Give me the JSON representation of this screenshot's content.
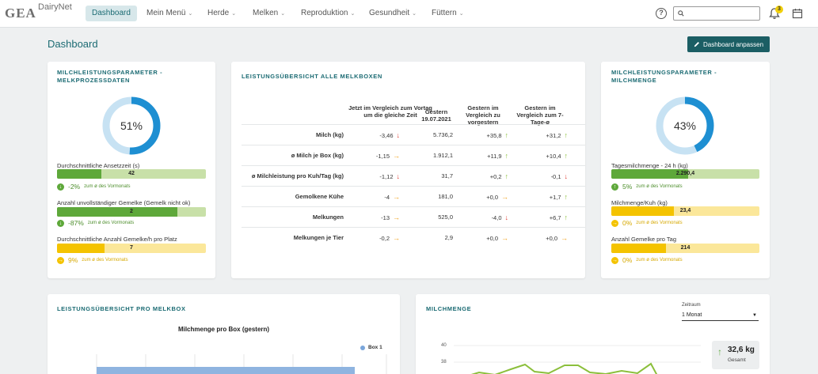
{
  "brand": {
    "logo": "GEA",
    "app_name": "DairyNet"
  },
  "nav": {
    "items": [
      {
        "label": "Dashboard",
        "active": true,
        "dropdown": false
      },
      {
        "label": "Mein Menü",
        "active": false,
        "dropdown": true
      },
      {
        "label": "Herde",
        "active": false,
        "dropdown": true
      },
      {
        "label": "Melken",
        "active": false,
        "dropdown": true
      },
      {
        "label": "Reproduktion",
        "active": false,
        "dropdown": true
      },
      {
        "label": "Gesundheit",
        "active": false,
        "dropdown": true
      },
      {
        "label": "Füttern",
        "active": false,
        "dropdown": true
      }
    ],
    "help_icon": "?",
    "search_placeholder": "",
    "notification_count": "3"
  },
  "page": {
    "title": "Dashboard",
    "customize_button": "Dashboard anpassen"
  },
  "card_melkprozess": {
    "title": "MILCHLEISTUNGSPARAMETER - MELKPROZESSDATEN",
    "donut_value": "51%",
    "donut_fraction": 0.51,
    "metrics": [
      {
        "label": "Durchschnittliche Ansetzzeit (s)",
        "value": "42",
        "fill": 0.3,
        "color": "#5ea83a",
        "track": "#c8e0a8",
        "trend_pct": "-2%",
        "trend_note": "zum ø des Vormonats",
        "trend_dir": "down",
        "trend_color": "#5ea83a"
      },
      {
        "label": "Anzahl unvollständiger Gemelke (Gemelk nicht ok)",
        "value": "2",
        "fill": 0.81,
        "color": "#5ea83a",
        "track": "#c8e0a8",
        "trend_pct": "-87%",
        "trend_note": "zum ø des Vormonats",
        "trend_dir": "down",
        "trend_color": "#5ea83a"
      },
      {
        "label": "Durchschnittliche Anzahl Gemelke/h pro Platz",
        "value": "7",
        "fill": 0.32,
        "color": "#f4c300",
        "track": "#fbe79a",
        "trend_pct": "9%",
        "trend_note": "zum ø des Vormonats",
        "trend_dir": "right",
        "trend_color": "#f4c300"
      }
    ]
  },
  "card_melkboxen": {
    "title": "LEISTUNGSÜBERSICHT ALLE MELKBOXEN",
    "headers": [
      "Jetzt im Vergleich zum Vortag um die gleiche Zeit",
      "Gestern 19.07.2021",
      "Gestern im Vergleich zu vorgestern",
      "Gestern im Vergleich zum 7-Tage-ø"
    ],
    "rows": [
      {
        "label": "Milch (kg)",
        "c1": "-3,46",
        "a1": "down",
        "c2": "5.736,2",
        "c3": "+35,8",
        "a3": "up",
        "c4": "+31,2",
        "a4": "up"
      },
      {
        "label": "ø Milch je Box (kg)",
        "c1": "-1,15",
        "a1": "right",
        "c2": "1.912,1",
        "c3": "+11,9",
        "a3": "up",
        "c4": "+10,4",
        "a4": "up"
      },
      {
        "label": "ø Milchleistung pro Kuh/Tag (kg)",
        "c1": "-1,12",
        "a1": "down",
        "c2": "31,7",
        "c3": "+0,2",
        "a3": "up",
        "c4": "-0,1",
        "a4": "down"
      },
      {
        "label": "Gemolkene Kühe",
        "c1": "-4",
        "a1": "right",
        "c2": "181,0",
        "c3": "+0,0",
        "a3": "right",
        "c4": "+1,7",
        "a4": "up"
      },
      {
        "label": "Melkungen",
        "c1": "-13",
        "a1": "right",
        "c2": "525,0",
        "c3": "-4,0",
        "a3": "down",
        "c4": "+6,7",
        "a4": "up"
      },
      {
        "label": "Melkungen je Tier",
        "c1": "-0,2",
        "a1": "right",
        "c2": "2,9",
        "c3": "+0,0",
        "a3": "right",
        "c4": "+0,0",
        "a4": "right"
      }
    ]
  },
  "card_milchmenge": {
    "title": "MILCHLEISTUNGSPARAMETER - MILCHMENGE",
    "donut_value": "43%",
    "donut_fraction": 0.43,
    "metrics": [
      {
        "label": "Tagesmilchmenge - 24 h (kg)",
        "value": "2.290,4",
        "fill": 0.52,
        "color": "#5ea83a",
        "track": "#c8e0a8",
        "trend_pct": "5%",
        "trend_note": "zum ø des Vormonats",
        "trend_dir": "up",
        "trend_color": "#5ea83a"
      },
      {
        "label": "Milchmenge/Kuh (kg)",
        "value": "23,4",
        "fill": 0.42,
        "color": "#f4c300",
        "track": "#fbe79a",
        "trend_pct": "0%",
        "trend_note": "zum ø des Vormonats",
        "trend_dir": "right",
        "trend_color": "#f4c300"
      },
      {
        "label": "Anzahl Gemelke pro Tag",
        "value": "214",
        "fill": 0.37,
        "color": "#f4c300",
        "track": "#fbe79a",
        "trend_pct": "0%",
        "trend_note": "zum ø des Vormonats",
        "trend_dir": "right",
        "trend_color": "#f4c300"
      }
    ]
  },
  "card_pro_melkbox": {
    "title": "LEISTUNGSÜBERSICHT PRO MELKBOX",
    "chart_title": "Milchmenge pro Box (gestern)",
    "legend": "Box 1"
  },
  "card_milchmenge_chart": {
    "title": "MILCHMENGE",
    "zeitraum_label": "Zeitraum",
    "zeitraum_value": "1 Monat",
    "summary_value": "32,6 kg",
    "summary_label": "Gesamt",
    "y_ticks": [
      "40",
      "38"
    ]
  },
  "chart_data": [
    {
      "type": "bar",
      "title": "Milchmenge pro Box (gestern)",
      "categories": [],
      "series": [
        {
          "name": "Box 1",
          "values": []
        }
      ]
    },
    {
      "type": "line",
      "title": "",
      "y_ticks": [
        40,
        38
      ],
      "series": [
        {
          "name": "",
          "values": []
        }
      ]
    }
  ],
  "colors": {
    "accent": "#1b6b73",
    "donut": "#1e8fd2",
    "donut_track": "#c7e2f3",
    "good": "#5ea83a",
    "warn": "#f4c300",
    "bad": "#e0443a"
  }
}
